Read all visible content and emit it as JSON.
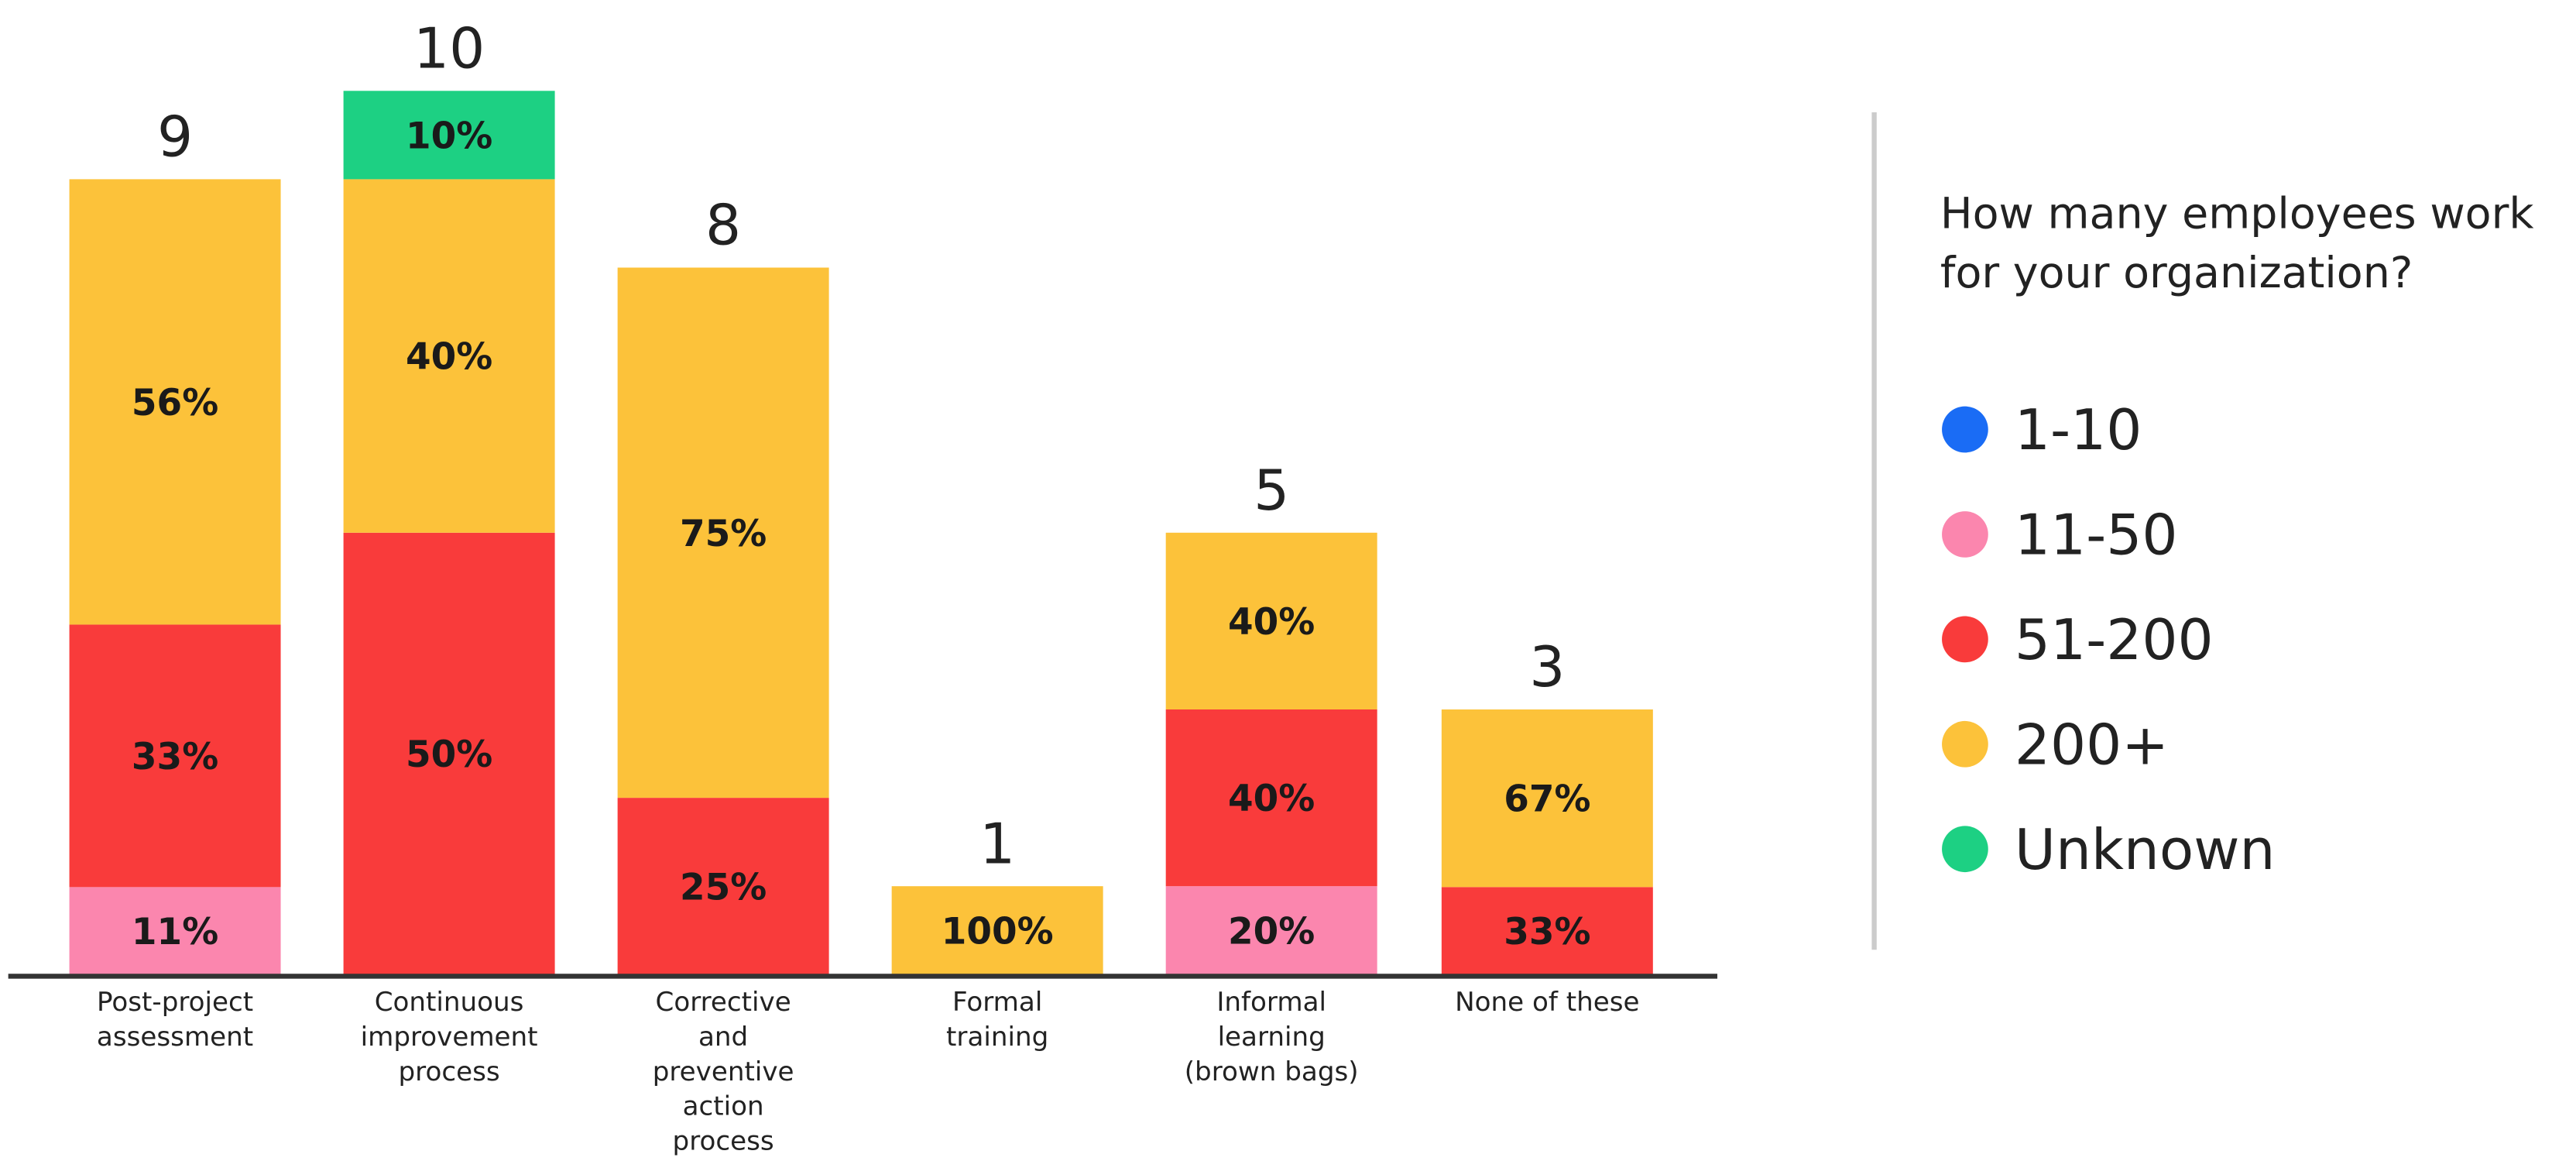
{
  "chart_data": {
    "type": "stacked_bar",
    "categories": [
      "Post-project assessment",
      "Continuous improvement process",
      "Corrective and preventive action process",
      "Formal training",
      "Informal learning (brown bags)",
      "None of these"
    ],
    "totals": [
      9,
      10,
      8,
      1,
      5,
      3
    ],
    "legend_title": "How many employees work for your organization?",
    "series": [
      {
        "name": "1-10",
        "color": "#1a6cf5",
        "values": [
          null,
          null,
          null,
          null,
          null,
          null
        ]
      },
      {
        "name": "11-50",
        "color": "#fb86ae",
        "values": [
          11,
          null,
          null,
          null,
          20,
          null
        ],
        "value_labels": [
          "11%",
          null,
          null,
          null,
          "20%",
          null
        ]
      },
      {
        "name": "51-200",
        "color": "#f93b3b",
        "values": [
          33,
          50,
          25,
          null,
          40,
          33
        ],
        "value_labels": [
          "33%",
          "50%",
          "25%",
          null,
          "40%",
          "33%"
        ]
      },
      {
        "name": "200+",
        "color": "#fcc23a",
        "values": [
          56,
          40,
          75,
          100,
          40,
          67
        ],
        "value_labels": [
          "56%",
          "40%",
          "75%",
          "100%",
          "40%",
          "67%"
        ]
      },
      {
        "name": "Unknown",
        "color": "#1dd083",
        "values": [
          null,
          10,
          null,
          null,
          null,
          null
        ],
        "value_labels": [
          null,
          "10%",
          null,
          null,
          null,
          null
        ]
      }
    ]
  }
}
